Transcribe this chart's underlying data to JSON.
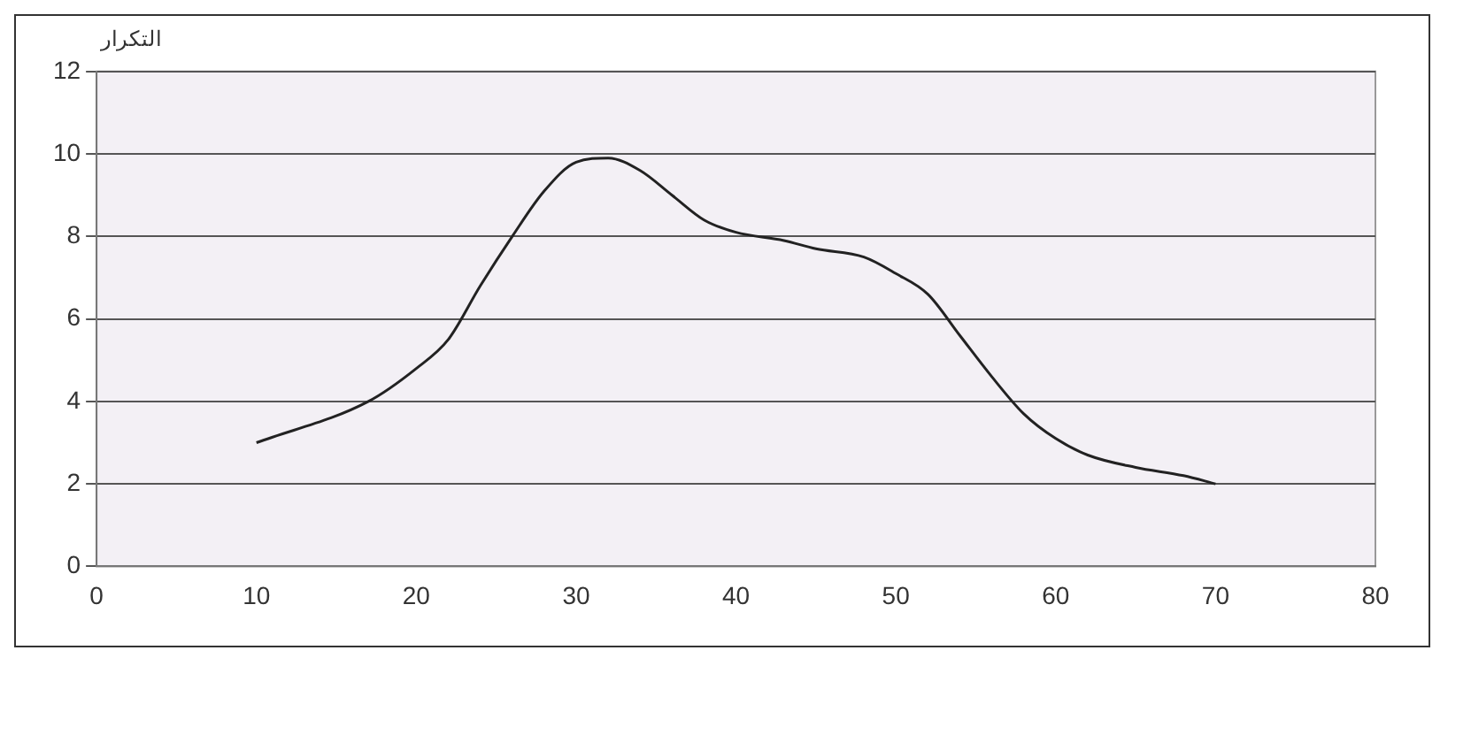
{
  "chart_data": {
    "type": "line",
    "ylabel": "التكرار",
    "x": [
      10,
      17,
      20,
      22,
      24,
      26,
      28,
      30,
      32,
      34,
      36,
      38,
      40,
      43,
      45,
      48,
      50,
      52,
      54,
      56,
      58,
      60,
      62,
      65,
      68,
      70
    ],
    "series": [
      {
        "color": "#222222",
        "values": [
          3,
          4,
          4.8,
          5.5,
          6.8,
          8,
          9.1,
          9.8,
          9.9,
          9.6,
          9,
          8.4,
          8.1,
          7.9,
          7.7,
          7.5,
          7.1,
          6.6,
          5.6,
          4.6,
          3.7,
          3.1,
          2.7,
          2.4,
          2.2,
          2
        ]
      }
    ],
    "xlim": [
      0,
      80
    ],
    "xticks": [
      0,
      10,
      20,
      30,
      40,
      50,
      60,
      70,
      80
    ],
    "ylim": [
      0,
      12
    ],
    "yticks": [
      0,
      2,
      4,
      6,
      8,
      10,
      12
    ],
    "grid": "y",
    "legend": false,
    "marker": "none",
    "line_style": "solid"
  }
}
